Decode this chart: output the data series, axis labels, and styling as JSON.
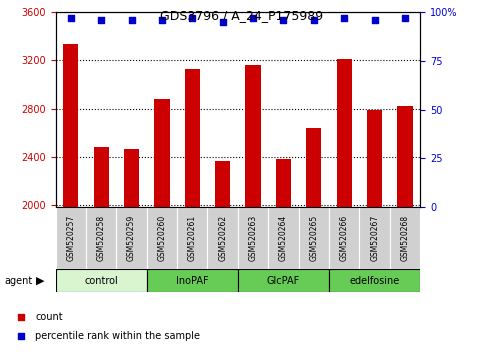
{
  "title": "GDS3796 / A_24_P175989",
  "samples": [
    "GSM520257",
    "GSM520258",
    "GSM520259",
    "GSM520260",
    "GSM520261",
    "GSM520262",
    "GSM520263",
    "GSM520264",
    "GSM520265",
    "GSM520266",
    "GSM520267",
    "GSM520268"
  ],
  "counts": [
    3340,
    2480,
    2460,
    2880,
    3130,
    2360,
    3160,
    2380,
    2640,
    3210,
    2790,
    2820
  ],
  "percentile_ranks": [
    97,
    96,
    96,
    96,
    97,
    95,
    97,
    96,
    96,
    97,
    96,
    97
  ],
  "bar_color": "#cc0000",
  "dot_color": "#0000cc",
  "ylim_left": [
    1980,
    3600
  ],
  "ylim_right": [
    0,
    100
  ],
  "yticks_left": [
    2000,
    2400,
    2800,
    3200,
    3600
  ],
  "yticks_right": [
    0,
    25,
    50,
    75,
    100
  ],
  "right_tick_labels": [
    "0",
    "25",
    "50",
    "75",
    "100%"
  ],
  "groups": [
    {
      "label": "control",
      "start": 0,
      "end": 3,
      "color": "#d8f5d0"
    },
    {
      "label": "InoPAF",
      "start": 3,
      "end": 6,
      "color": "#66cc55"
    },
    {
      "label": "GlcPAF",
      "start": 6,
      "end": 9,
      "color": "#66cc55"
    },
    {
      "label": "edelfosine",
      "start": 9,
      "end": 12,
      "color": "#66cc55"
    }
  ],
  "agent_label": "agent",
  "legend_items": [
    {
      "color": "#cc0000",
      "label": "count"
    },
    {
      "color": "#0000cc",
      "label": "percentile rank within the sample"
    }
  ],
  "left_tick_color": "#cc0000",
  "right_tick_color": "#0000cc",
  "sample_box_color": "#d0d0d0",
  "fig_width": 4.83,
  "fig_height": 3.54,
  "dpi": 100
}
